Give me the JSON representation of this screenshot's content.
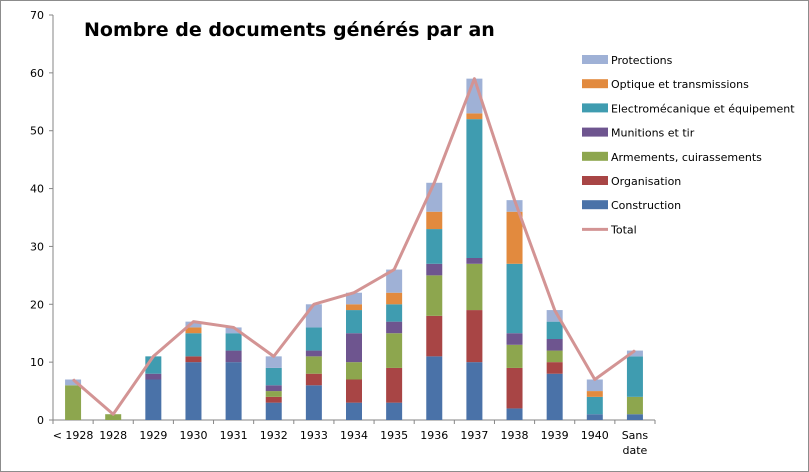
{
  "chart_data": {
    "type": "bar",
    "stacked": true,
    "title": "Nombre de documents générés par an",
    "xlabel": "",
    "ylabel": "",
    "ylim": [
      0,
      70
    ],
    "yticks": [
      0,
      10,
      20,
      30,
      40,
      50,
      60,
      70
    ],
    "grid": false,
    "legend_position": "right",
    "categories": [
      "< 1928",
      "1928",
      "1929",
      "1930",
      "1931",
      "1932",
      "1933",
      "1934",
      "1935",
      "1936",
      "1937",
      "1938",
      "1939",
      "1940",
      "Sans date"
    ],
    "series": [
      {
        "name": "Construction",
        "color": "#4a72a8",
        "values": [
          0,
          0,
          7,
          10,
          10,
          3,
          6,
          3,
          3,
          11,
          10,
          2,
          8,
          1,
          1
        ]
      },
      {
        "name": "Organisation",
        "color": "#a84545",
        "values": [
          0,
          0,
          0,
          1,
          0,
          1,
          2,
          4,
          6,
          7,
          9,
          7,
          2,
          0,
          0
        ]
      },
      {
        "name": "Armements, cuirassements",
        "color": "#8da64e",
        "values": [
          6,
          1,
          0,
          0,
          0,
          1,
          3,
          3,
          6,
          7,
          8,
          4,
          2,
          0,
          3
        ]
      },
      {
        "name": "Munitions et tir",
        "color": "#6e558f",
        "values": [
          0,
          0,
          1,
          0,
          2,
          1,
          1,
          5,
          2,
          2,
          1,
          2,
          2,
          0,
          0
        ]
      },
      {
        "name": "Electromécanique et équipement",
        "color": "#3f9cb0",
        "values": [
          0,
          0,
          3,
          4,
          3,
          3,
          4,
          4,
          3,
          6,
          24,
          12,
          3,
          3,
          7
        ]
      },
      {
        "name": "Optique et transmissions",
        "color": "#e28a3e",
        "values": [
          0,
          0,
          0,
          1,
          0,
          0,
          0,
          1,
          2,
          3,
          1,
          9,
          0,
          1,
          0
        ]
      },
      {
        "name": "Protections",
        "color": "#9fb1d6",
        "values": [
          1,
          0,
          0,
          1,
          1,
          2,
          4,
          2,
          4,
          5,
          6,
          2,
          2,
          2,
          1
        ]
      }
    ],
    "total": {
      "name": "Total",
      "color": "#d39494",
      "values": [
        7,
        1,
        11,
        17,
        16,
        11,
        20,
        22,
        26,
        41,
        59,
        38,
        19,
        7,
        12
      ]
    }
  }
}
